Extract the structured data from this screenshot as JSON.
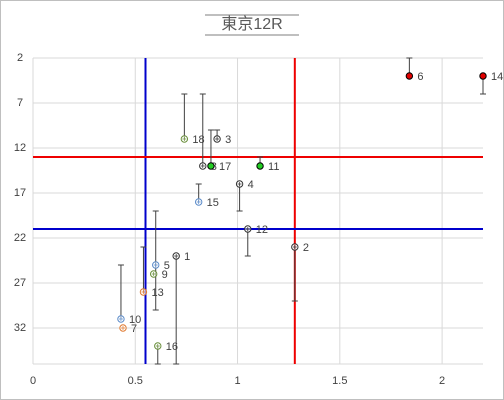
{
  "chart_data": {
    "type": "scatter",
    "title": "東京12R",
    "xlim": [
      0,
      2.2
    ],
    "xticks": [
      0,
      0.5,
      1,
      1.5,
      2
    ],
    "ylim": [
      2,
      36
    ],
    "yticks": [
      2,
      7,
      12,
      17,
      22,
      27,
      32
    ],
    "y_reversed": true,
    "grid": true,
    "points": [
      {
        "label": "14",
        "x": 2.2,
        "y": 4,
        "err_minus": 0,
        "err_plus": 2,
        "color": "#000000",
        "fill": "#e00000"
      },
      {
        "label": "6",
        "x": 1.84,
        "y": 4,
        "err_minus": 2,
        "err_plus": 0,
        "color": "#000000",
        "fill": "#e00000"
      },
      {
        "label": "18",
        "x": 0.74,
        "y": 11,
        "err_minus": 5,
        "err_plus": 0,
        "color": "#6a8f3c",
        "fill": "none"
      },
      {
        "label": "3",
        "x": 0.9,
        "y": 11,
        "err_minus": 1,
        "err_plus": 0,
        "color": "#333333",
        "fill": "none"
      },
      {
        "label": "8",
        "x": 0.83,
        "y": 14,
        "err_minus": 8,
        "err_plus": 0,
        "color": "#333333",
        "fill": "none"
      },
      {
        "label": "17",
        "x": 0.87,
        "y": 14,
        "err_minus": 4,
        "err_plus": 0,
        "color": "#000000",
        "fill": "#22cc22"
      },
      {
        "label": "11",
        "x": 1.11,
        "y": 14,
        "err_minus": 1,
        "err_plus": 0,
        "color": "#000000",
        "fill": "#22cc22"
      },
      {
        "label": "4",
        "x": 1.01,
        "y": 16,
        "err_minus": 0,
        "err_plus": 3,
        "color": "#333333",
        "fill": "none"
      },
      {
        "label": "15",
        "x": 0.81,
        "y": 18,
        "err_minus": 2,
        "err_plus": 0,
        "color": "#5b8bc9",
        "fill": "none"
      },
      {
        "label": "12",
        "x": 1.05,
        "y": 21,
        "err_minus": 0,
        "err_plus": 3,
        "color": "#333333",
        "fill": "none"
      },
      {
        "label": "2",
        "x": 1.28,
        "y": 23,
        "err_minus": 0,
        "err_plus": 6,
        "color": "#333333",
        "fill": "none"
      },
      {
        "label": "1",
        "x": 0.7,
        "y": 24,
        "err_minus": 0,
        "err_plus": 12,
        "color": "#333333",
        "fill": "none"
      },
      {
        "label": "5",
        "x": 0.6,
        "y": 25,
        "err_minus": 6,
        "err_plus": 5,
        "color": "#5b8bc9",
        "fill": "none"
      },
      {
        "label": "9",
        "x": 0.59,
        "y": 26,
        "err_minus": 0,
        "err_plus": 0,
        "color": "#6a8f3c",
        "fill": "none"
      },
      {
        "label": "13",
        "x": 0.54,
        "y": 28,
        "err_minus": 5,
        "err_plus": 0,
        "color": "#e07a30",
        "fill": "none"
      },
      {
        "label": "10",
        "x": 0.43,
        "y": 31,
        "err_minus": 6,
        "err_plus": 0,
        "color": "#5b8bc9",
        "fill": "none"
      },
      {
        "label": "7",
        "x": 0.44,
        "y": 32,
        "err_minus": 0,
        "err_plus": 0,
        "color": "#e07a30",
        "fill": "none"
      },
      {
        "label": "16",
        "x": 0.61,
        "y": 34,
        "err_minus": 0,
        "err_plus": 2,
        "color": "#6a8f3c",
        "fill": "none"
      }
    ],
    "vlines": [
      {
        "x": 0.55,
        "color": "#0000cc"
      },
      {
        "x": 1.28,
        "color": "#ee0000"
      }
    ],
    "hlines": [
      {
        "y": 13,
        "color": "#ee0000"
      },
      {
        "y": 21,
        "color": "#0000cc"
      }
    ]
  }
}
